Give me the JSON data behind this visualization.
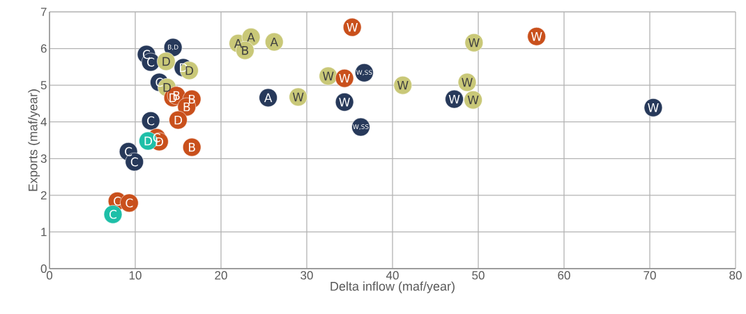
{
  "chart_data": {
    "type": "scatter",
    "xlabel": "Delta inflow (maf/year)",
    "ylabel": "Exports (maf/year)",
    "xlim": [
      0,
      80
    ],
    "xticks": [
      0,
      10,
      20,
      30,
      40,
      50,
      60,
      70,
      80
    ],
    "ylim": [
      0,
      7
    ],
    "yticks": [
      0,
      1,
      2,
      3,
      4,
      5,
      6,
      7
    ],
    "grid": true,
    "marker": "circle",
    "series": [
      {
        "color": "#27395a",
        "x": [
          11.3,
          11.8,
          14.4,
          15.6,
          12.8,
          11.8,
          9.2,
          9.9,
          25.5,
          36.7,
          34.4,
          36.3,
          47.2,
          70.4
        ],
        "values": [
          5.84,
          5.63,
          6.03,
          5.48,
          5.08,
          4.03,
          3.19,
          2.91,
          4.66,
          5.34,
          4.54,
          3.86,
          4.62,
          4.39
        ],
        "value_labels": [
          "C",
          "C",
          "B,D",
          "D",
          "C",
          "C",
          "C",
          "C",
          "A",
          "W,SS",
          "W",
          "W,SS",
          "W",
          "W"
        ]
      },
      {
        "color": "#c9c878",
        "x": [
          22.0,
          23.5,
          22.8,
          26.2,
          13.6,
          16.3,
          13.7,
          29.0,
          32.5,
          41.2,
          49.5,
          48.7,
          49.4
        ],
        "values": [
          6.14,
          6.31,
          5.95,
          6.18,
          5.65,
          5.4,
          4.94,
          4.68,
          5.25,
          5.0,
          6.16,
          5.08,
          4.6
        ],
        "value_labels": [
          "A",
          "A",
          "B",
          "A",
          "D",
          "D",
          "D",
          "W",
          "W",
          "W",
          "W",
          "W",
          "W"
        ]
      },
      {
        "color": "#c9501c",
        "x": [
          35.3,
          34.4,
          56.8,
          14.4,
          14.8,
          16.6,
          16.0,
          15.0,
          12.5,
          12.8,
          16.6,
          7.9,
          9.3
        ],
        "values": [
          6.58,
          5.19,
          6.33,
          4.66,
          4.72,
          4.62,
          4.41,
          4.05,
          3.57,
          3.46,
          3.31,
          1.84,
          1.79
        ],
        "value_labels": [
          "W",
          "W",
          "W",
          "D",
          "B",
          "B",
          "B",
          "D",
          "C",
          "D",
          "B",
          "C",
          "C"
        ]
      },
      {
        "color": "#1ebfa8",
        "x": [
          11.5,
          7.4
        ],
        "values": [
          3.48,
          1.48
        ],
        "value_labels": [
          "D",
          "C"
        ]
      }
    ]
  }
}
